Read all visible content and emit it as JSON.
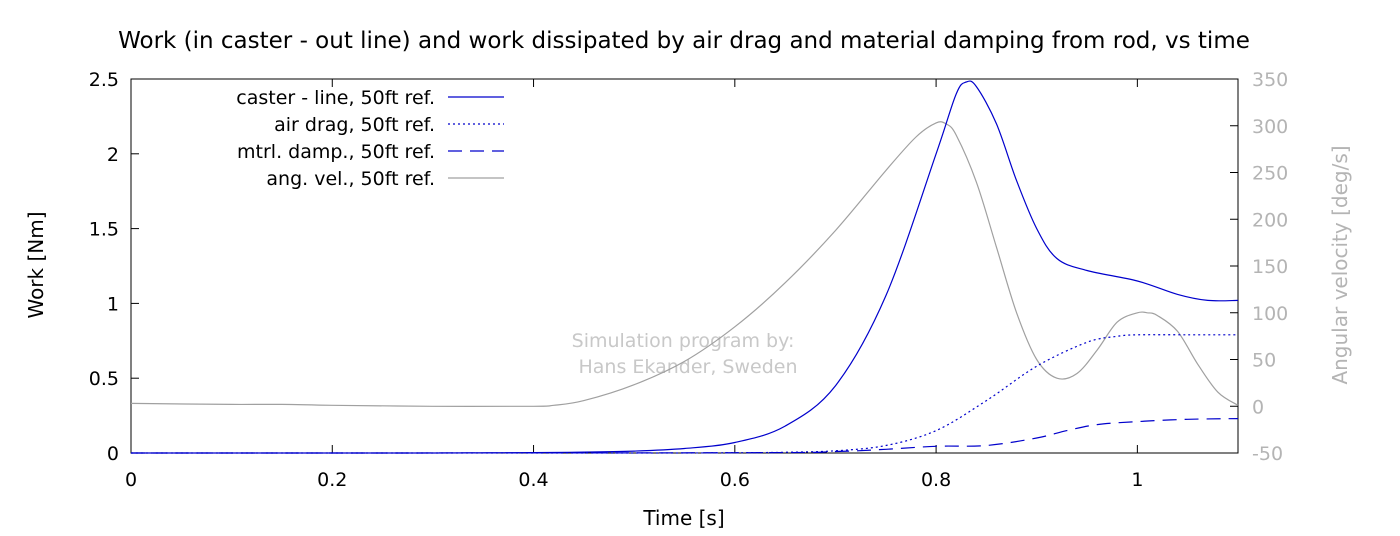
{
  "chart_data": {
    "type": "line",
    "title": "Work (in caster - out line) and work dissipated by air drag and material damping from rod, vs time",
    "xlabel": "Time [s]",
    "ylabel": "Work [Nm]",
    "y2label": "Angular velocity [deg/s]",
    "xlim": [
      0,
      1.1
    ],
    "ylim": [
      0,
      2.5
    ],
    "y2lim": [
      -50,
      350
    ],
    "xticks": [
      0,
      0.2,
      0.4,
      0.6,
      0.8,
      1
    ],
    "xtick_labels": [
      "0",
      "0.2",
      "0.4",
      "0.6",
      "0.8",
      "1"
    ],
    "yticks": [
      0,
      0.5,
      1,
      1.5,
      2,
      2.5
    ],
    "ytick_labels": [
      "0",
      "0.5",
      "1",
      "1.5",
      "2",
      "2.5"
    ],
    "y2ticks": [
      -50,
      0,
      50,
      100,
      150,
      200,
      250,
      300,
      350
    ],
    "y2tick_labels": [
      "-50",
      "0",
      "50",
      "100",
      "150",
      "200",
      "250",
      "300",
      "350"
    ],
    "grid": false,
    "legend_position": "top-left",
    "annotation": [
      "Simulation program by:",
      "Hans Ekander, Sweden"
    ],
    "colors": {
      "work": "#0000cc",
      "angvel": "#a0a0a0"
    },
    "series": [
      {
        "name": "caster - line, 50ft ref.",
        "axis": "left",
        "style": "solid",
        "x": [
          0,
          0.1,
          0.2,
          0.3,
          0.4,
          0.45,
          0.5,
          0.55,
          0.6,
          0.65,
          0.7,
          0.75,
          0.8,
          0.82,
          0.83,
          0.84,
          0.86,
          0.88,
          0.9,
          0.92,
          0.95,
          1.0,
          1.04,
          1.07,
          1.1
        ],
        "y": [
          0,
          0,
          0,
          0,
          0.003,
          0.006,
          0.013,
          0.03,
          0.07,
          0.18,
          0.45,
          1.05,
          2.0,
          2.4,
          2.48,
          2.45,
          2.2,
          1.82,
          1.5,
          1.3,
          1.22,
          1.15,
          1.06,
          1.02,
          1.02
        ]
      },
      {
        "name": "air drag, 50ft ref.",
        "axis": "left",
        "style": "dotted",
        "x": [
          0,
          0.5,
          0.6,
          0.65,
          0.7,
          0.75,
          0.8,
          0.85,
          0.9,
          0.95,
          0.98,
          1.0,
          1.05,
          1.1
        ],
        "y": [
          0,
          0,
          0.002,
          0.005,
          0.015,
          0.05,
          0.15,
          0.35,
          0.58,
          0.74,
          0.78,
          0.79,
          0.79,
          0.79
        ]
      },
      {
        "name": "mtrl. damp., 50ft ref.",
        "axis": "left",
        "style": "dashed",
        "x": [
          0,
          0.6,
          0.7,
          0.75,
          0.8,
          0.85,
          0.9,
          0.93,
          0.96,
          1.0,
          1.05,
          1.1
        ],
        "y": [
          0,
          0.002,
          0.01,
          0.025,
          0.045,
          0.05,
          0.1,
          0.15,
          0.19,
          0.21,
          0.225,
          0.23
        ]
      },
      {
        "name": "ang. vel., 50ft ref.",
        "axis": "right",
        "style": "solid",
        "x": [
          0,
          0.1,
          0.15,
          0.2,
          0.3,
          0.4,
          0.42,
          0.45,
          0.5,
          0.55,
          0.6,
          0.65,
          0.7,
          0.75,
          0.78,
          0.8,
          0.81,
          0.82,
          0.84,
          0.86,
          0.88,
          0.9,
          0.92,
          0.94,
          0.96,
          0.98,
          1.0,
          1.01,
          1.02,
          1.04,
          1.06,
          1.08,
          1.1
        ],
        "y": [
          3,
          2,
          2,
          1,
          0,
          0,
          1,
          6,
          23,
          48,
          85,
          132,
          188,
          252,
          288,
          303,
          302,
          290,
          240,
          170,
          100,
          50,
          30,
          35,
          60,
          90,
          100,
          100,
          97,
          80,
          45,
          15,
          1
        ]
      }
    ]
  }
}
